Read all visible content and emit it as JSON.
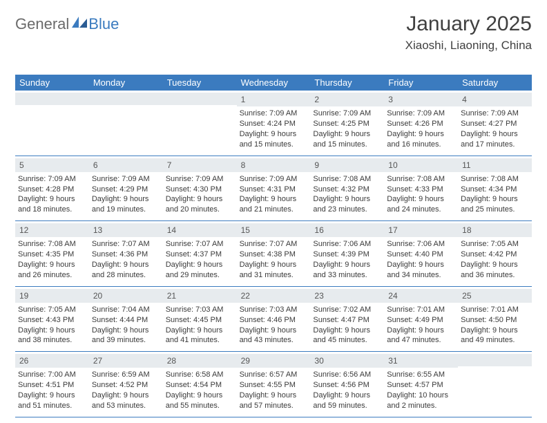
{
  "logo": {
    "text1": "General",
    "text2": "Blue"
  },
  "header": {
    "month_title": "January 2025",
    "location": "Xiaoshi, Liaoning, China"
  },
  "colors": {
    "header_bar": "#3b7bbf",
    "day_num_bg": "#e7ebee",
    "row_border": "#3b7bbf",
    "text": "#3a3a3a",
    "logo_gray": "#6a6a6a",
    "logo_blue": "#3b7bbf"
  },
  "weekdays": [
    "Sunday",
    "Monday",
    "Tuesday",
    "Wednesday",
    "Thursday",
    "Friday",
    "Saturday"
  ],
  "weeks": [
    [
      {
        "day": "",
        "lines": []
      },
      {
        "day": "",
        "lines": []
      },
      {
        "day": "",
        "lines": []
      },
      {
        "day": "1",
        "lines": [
          "Sunrise: 7:09 AM",
          "Sunset: 4:24 PM",
          "Daylight: 9 hours and 15 minutes."
        ]
      },
      {
        "day": "2",
        "lines": [
          "Sunrise: 7:09 AM",
          "Sunset: 4:25 PM",
          "Daylight: 9 hours and 15 minutes."
        ]
      },
      {
        "day": "3",
        "lines": [
          "Sunrise: 7:09 AM",
          "Sunset: 4:26 PM",
          "Daylight: 9 hours and 16 minutes."
        ]
      },
      {
        "day": "4",
        "lines": [
          "Sunrise: 7:09 AM",
          "Sunset: 4:27 PM",
          "Daylight: 9 hours and 17 minutes."
        ]
      }
    ],
    [
      {
        "day": "5",
        "lines": [
          "Sunrise: 7:09 AM",
          "Sunset: 4:28 PM",
          "Daylight: 9 hours and 18 minutes."
        ]
      },
      {
        "day": "6",
        "lines": [
          "Sunrise: 7:09 AM",
          "Sunset: 4:29 PM",
          "Daylight: 9 hours and 19 minutes."
        ]
      },
      {
        "day": "7",
        "lines": [
          "Sunrise: 7:09 AM",
          "Sunset: 4:30 PM",
          "Daylight: 9 hours and 20 minutes."
        ]
      },
      {
        "day": "8",
        "lines": [
          "Sunrise: 7:09 AM",
          "Sunset: 4:31 PM",
          "Daylight: 9 hours and 21 minutes."
        ]
      },
      {
        "day": "9",
        "lines": [
          "Sunrise: 7:08 AM",
          "Sunset: 4:32 PM",
          "Daylight: 9 hours and 23 minutes."
        ]
      },
      {
        "day": "10",
        "lines": [
          "Sunrise: 7:08 AM",
          "Sunset: 4:33 PM",
          "Daylight: 9 hours and 24 minutes."
        ]
      },
      {
        "day": "11",
        "lines": [
          "Sunrise: 7:08 AM",
          "Sunset: 4:34 PM",
          "Daylight: 9 hours and 25 minutes."
        ]
      }
    ],
    [
      {
        "day": "12",
        "lines": [
          "Sunrise: 7:08 AM",
          "Sunset: 4:35 PM",
          "Daylight: 9 hours and 26 minutes."
        ]
      },
      {
        "day": "13",
        "lines": [
          "Sunrise: 7:07 AM",
          "Sunset: 4:36 PM",
          "Daylight: 9 hours and 28 minutes."
        ]
      },
      {
        "day": "14",
        "lines": [
          "Sunrise: 7:07 AM",
          "Sunset: 4:37 PM",
          "Daylight: 9 hours and 29 minutes."
        ]
      },
      {
        "day": "15",
        "lines": [
          "Sunrise: 7:07 AM",
          "Sunset: 4:38 PM",
          "Daylight: 9 hours and 31 minutes."
        ]
      },
      {
        "day": "16",
        "lines": [
          "Sunrise: 7:06 AM",
          "Sunset: 4:39 PM",
          "Daylight: 9 hours and 33 minutes."
        ]
      },
      {
        "day": "17",
        "lines": [
          "Sunrise: 7:06 AM",
          "Sunset: 4:40 PM",
          "Daylight: 9 hours and 34 minutes."
        ]
      },
      {
        "day": "18",
        "lines": [
          "Sunrise: 7:05 AM",
          "Sunset: 4:42 PM",
          "Daylight: 9 hours and 36 minutes."
        ]
      }
    ],
    [
      {
        "day": "19",
        "lines": [
          "Sunrise: 7:05 AM",
          "Sunset: 4:43 PM",
          "Daylight: 9 hours and 38 minutes."
        ]
      },
      {
        "day": "20",
        "lines": [
          "Sunrise: 7:04 AM",
          "Sunset: 4:44 PM",
          "Daylight: 9 hours and 39 minutes."
        ]
      },
      {
        "day": "21",
        "lines": [
          "Sunrise: 7:03 AM",
          "Sunset: 4:45 PM",
          "Daylight: 9 hours and 41 minutes."
        ]
      },
      {
        "day": "22",
        "lines": [
          "Sunrise: 7:03 AM",
          "Sunset: 4:46 PM",
          "Daylight: 9 hours and 43 minutes."
        ]
      },
      {
        "day": "23",
        "lines": [
          "Sunrise: 7:02 AM",
          "Sunset: 4:47 PM",
          "Daylight: 9 hours and 45 minutes."
        ]
      },
      {
        "day": "24",
        "lines": [
          "Sunrise: 7:01 AM",
          "Sunset: 4:49 PM",
          "Daylight: 9 hours and 47 minutes."
        ]
      },
      {
        "day": "25",
        "lines": [
          "Sunrise: 7:01 AM",
          "Sunset: 4:50 PM",
          "Daylight: 9 hours and 49 minutes."
        ]
      }
    ],
    [
      {
        "day": "26",
        "lines": [
          "Sunrise: 7:00 AM",
          "Sunset: 4:51 PM",
          "Daylight: 9 hours and 51 minutes."
        ]
      },
      {
        "day": "27",
        "lines": [
          "Sunrise: 6:59 AM",
          "Sunset: 4:52 PM",
          "Daylight: 9 hours and 53 minutes."
        ]
      },
      {
        "day": "28",
        "lines": [
          "Sunrise: 6:58 AM",
          "Sunset: 4:54 PM",
          "Daylight: 9 hours and 55 minutes."
        ]
      },
      {
        "day": "29",
        "lines": [
          "Sunrise: 6:57 AM",
          "Sunset: 4:55 PM",
          "Daylight: 9 hours and 57 minutes."
        ]
      },
      {
        "day": "30",
        "lines": [
          "Sunrise: 6:56 AM",
          "Sunset: 4:56 PM",
          "Daylight: 9 hours and 59 minutes."
        ]
      },
      {
        "day": "31",
        "lines": [
          "Sunrise: 6:55 AM",
          "Sunset: 4:57 PM",
          "Daylight: 10 hours and 2 minutes."
        ]
      },
      {
        "day": "",
        "lines": []
      }
    ]
  ]
}
